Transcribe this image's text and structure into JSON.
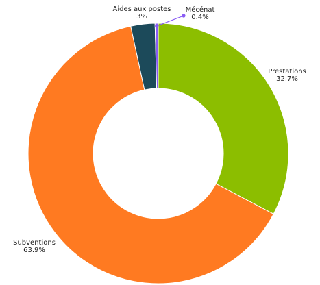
{
  "chart_data": {
    "type": "pie",
    "donut": true,
    "slices": [
      {
        "name": "Prestations",
        "value": 32.7,
        "value_label": "32.7%",
        "color": "#8CBE00"
      },
      {
        "name": "Subventions",
        "value": 63.9,
        "value_label": "63.9%",
        "color": "#FF7A21"
      },
      {
        "name": "Aides aux postes",
        "value": 3.0,
        "value_label": "3%",
        "color": "#1C4A5A"
      },
      {
        "name": "Mécénat",
        "value": 0.4,
        "value_label": "0.4%",
        "color": "#8A5CF5"
      }
    ],
    "title": "",
    "legend": "none"
  }
}
